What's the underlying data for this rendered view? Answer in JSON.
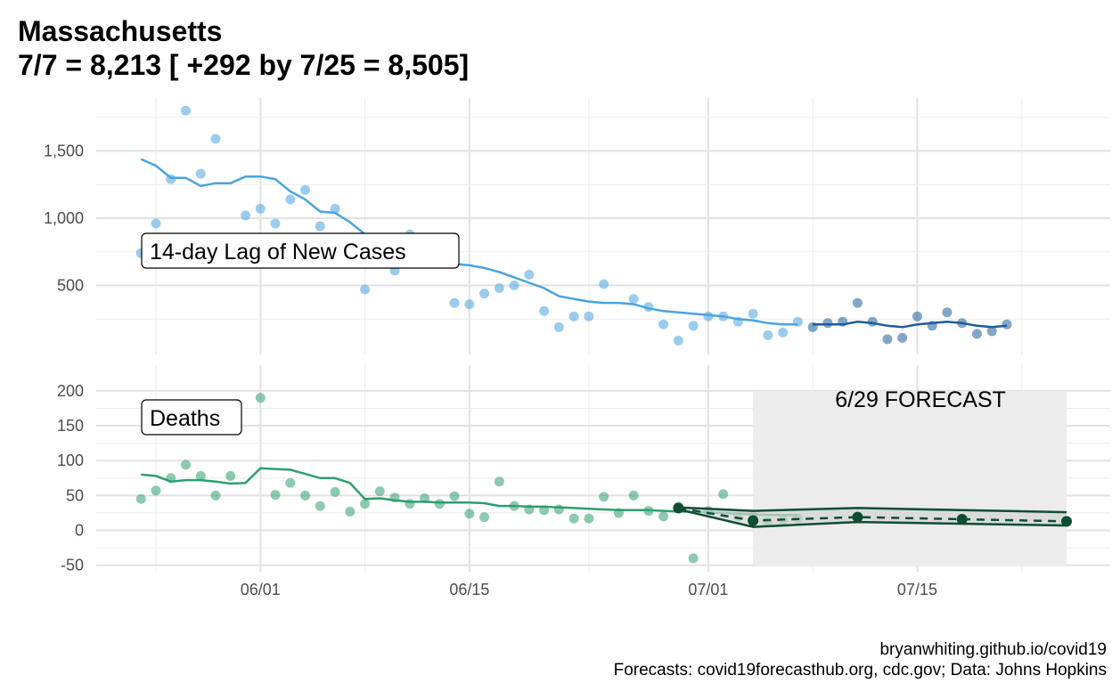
{
  "title": {
    "line1": "Massachusetts",
    "line2": "7/7 = 8,213 [ +292 by 7/25 = 8,505]"
  },
  "caption": {
    "line1": "bryanwhiting.github.io/covid19",
    "line2": "Forecasts: covid19forecasthub.org, cdc.gov; Data: Johns Hopkins"
  },
  "colors": {
    "cases_observed": "#4aa3df",
    "cases_forecast": "#1c5d99",
    "deaths_observed": "#2e9e6e",
    "deaths_forecast": "#0d4d34",
    "forecast_band": "#ececec"
  },
  "chart_data": [
    {
      "type": "scatter",
      "panel": "cases",
      "label": "14-day Lag of New Cases",
      "x_axis": {
        "type": "date",
        "range": [
          "2020-05-20",
          "2020-07-25"
        ],
        "ticks": [
          {
            "date": "2020-06-01",
            "label": "06/01"
          },
          {
            "date": "2020-06-15",
            "label": "06/15"
          },
          {
            "date": "2020-07-01",
            "label": "07/01"
          },
          {
            "date": "2020-07-15",
            "label": "07/15"
          }
        ]
      },
      "ylim": [
        0,
        1800
      ],
      "y_ticks": [
        {
          "value": 500,
          "label": "500"
        },
        {
          "value": 1000,
          "label": "1,000"
        },
        {
          "value": 1500,
          "label": "1,500"
        }
      ],
      "observed": {
        "x": [
          "2020-05-24",
          "2020-05-25",
          "2020-05-26",
          "2020-05-27",
          "2020-05-28",
          "2020-05-29",
          "2020-05-31",
          "2020-06-01",
          "2020-06-02",
          "2020-06-03",
          "2020-06-04",
          "2020-06-05",
          "2020-06-06",
          "2020-06-08",
          "2020-06-10",
          "2020-06-11",
          "2020-06-14",
          "2020-06-15",
          "2020-06-16",
          "2020-06-17",
          "2020-06-18",
          "2020-06-19",
          "2020-06-20",
          "2020-06-21",
          "2020-06-22",
          "2020-06-23",
          "2020-06-24",
          "2020-06-26",
          "2020-06-27",
          "2020-06-28",
          "2020-06-29",
          "2020-06-30",
          "2020-07-01",
          "2020-07-02",
          "2020-07-03",
          "2020-07-04",
          "2020-07-05",
          "2020-07-06",
          "2020-07-07"
        ],
        "y": [
          740,
          960,
          1290,
          1800,
          1330,
          1590,
          1020,
          1070,
          960,
          1140,
          1210,
          940,
          1070,
          470,
          610,
          880,
          370,
          360,
          440,
          480,
          500,
          580,
          310,
          190,
          270,
          270,
          510,
          400,
          340,
          210,
          90,
          200,
          270,
          270,
          230,
          290,
          130,
          150,
          230
        ]
      },
      "observed_smooth": {
        "x": [
          "2020-05-24",
          "2020-05-25",
          "2020-05-26",
          "2020-05-27",
          "2020-05-28",
          "2020-05-29",
          "2020-05-30",
          "2020-05-31",
          "2020-06-01",
          "2020-06-02",
          "2020-06-03",
          "2020-06-04",
          "2020-06-05",
          "2020-06-06",
          "2020-06-07",
          "2020-06-08",
          "2020-06-09",
          "2020-06-10",
          "2020-06-11",
          "2020-06-12",
          "2020-06-13",
          "2020-06-14",
          "2020-06-15",
          "2020-06-16",
          "2020-06-17",
          "2020-06-18",
          "2020-06-19",
          "2020-06-20",
          "2020-06-21",
          "2020-06-22",
          "2020-06-23",
          "2020-06-24",
          "2020-06-25",
          "2020-06-26",
          "2020-06-27",
          "2020-06-28",
          "2020-06-29",
          "2020-06-30",
          "2020-07-01",
          "2020-07-02",
          "2020-07-03",
          "2020-07-04",
          "2020-07-05",
          "2020-07-06",
          "2020-07-07"
        ],
        "y": [
          1440,
          1390,
          1300,
          1300,
          1240,
          1260,
          1260,
          1310,
          1310,
          1290,
          1200,
          1140,
          1050,
          1040,
          970,
          880,
          800,
          760,
          700,
          690,
          670,
          660,
          650,
          630,
          600,
          560,
          520,
          480,
          420,
          400,
          380,
          370,
          370,
          360,
          330,
          310,
          300,
          290,
          280,
          270,
          250,
          240,
          220,
          210,
          210
        ]
      },
      "forecast": {
        "x": [
          "2020-07-08",
          "2020-07-09",
          "2020-07-10",
          "2020-07-11",
          "2020-07-12",
          "2020-07-13",
          "2020-07-14",
          "2020-07-15",
          "2020-07-16",
          "2020-07-17",
          "2020-07-18",
          "2020-07-19",
          "2020-07-20",
          "2020-07-21"
        ],
        "y": [
          190,
          220,
          230,
          370,
          230,
          100,
          110,
          270,
          200,
          300,
          220,
          140,
          160,
          210
        ]
      },
      "forecast_smooth": {
        "x": [
          "2020-07-08",
          "2020-07-09",
          "2020-07-10",
          "2020-07-11",
          "2020-07-12",
          "2020-07-13",
          "2020-07-14",
          "2020-07-15",
          "2020-07-16",
          "2020-07-17",
          "2020-07-18",
          "2020-07-19",
          "2020-07-20",
          "2020-07-21"
        ],
        "y": [
          210,
          210,
          210,
          230,
          220,
          200,
          190,
          210,
          220,
          230,
          220,
          200,
          190,
          200
        ]
      }
    },
    {
      "type": "scatter",
      "panel": "deaths",
      "label": "Deaths",
      "forecast_label": "6/29 FORECAST",
      "forecast_band": [
        "2020-07-04",
        "2020-07-25"
      ],
      "ylim": [
        -50,
        200
      ],
      "y_ticks": [
        {
          "value": -50,
          "label": "-50"
        },
        {
          "value": 0,
          "label": "0"
        },
        {
          "value": 50,
          "label": "50"
        },
        {
          "value": 100,
          "label": "100"
        },
        {
          "value": 150,
          "label": "150"
        },
        {
          "value": 200,
          "label": "200"
        }
      ],
      "observed": {
        "x": [
          "2020-05-24",
          "2020-05-25",
          "2020-05-26",
          "2020-05-27",
          "2020-05-28",
          "2020-05-29",
          "2020-05-30",
          "2020-06-01",
          "2020-06-02",
          "2020-06-03",
          "2020-06-04",
          "2020-06-05",
          "2020-06-06",
          "2020-06-07",
          "2020-06-08",
          "2020-06-09",
          "2020-06-10",
          "2020-06-11",
          "2020-06-12",
          "2020-06-13",
          "2020-06-14",
          "2020-06-15",
          "2020-06-16",
          "2020-06-17",
          "2020-06-18",
          "2020-06-19",
          "2020-06-20",
          "2020-06-21",
          "2020-06-22",
          "2020-06-23",
          "2020-06-24",
          "2020-06-25",
          "2020-06-26",
          "2020-06-27",
          "2020-06-28",
          "2020-06-29",
          "2020-06-30",
          "2020-07-01",
          "2020-07-02",
          "2020-07-03",
          "2020-07-04",
          "2020-07-05",
          "2020-07-06",
          "2020-07-07"
        ],
        "y": [
          45,
          57,
          75,
          94,
          78,
          50,
          78,
          190,
          51,
          68,
          50,
          35,
          55,
          27,
          38,
          56,
          47,
          38,
          46,
          38,
          49,
          24,
          19,
          70,
          35,
          30,
          29,
          30,
          17,
          17,
          48,
          25,
          50,
          28,
          20,
          34,
          -40,
          28,
          52,
          20,
          22,
          12,
          15,
          17
        ]
      },
      "observed_smooth": {
        "x": [
          "2020-05-24",
          "2020-05-25",
          "2020-05-26",
          "2020-05-27",
          "2020-05-28",
          "2020-05-29",
          "2020-05-30",
          "2020-05-31",
          "2020-06-01",
          "2020-06-02",
          "2020-06-03",
          "2020-06-04",
          "2020-06-05",
          "2020-06-06",
          "2020-06-07",
          "2020-06-08",
          "2020-06-09",
          "2020-06-10",
          "2020-06-11",
          "2020-06-12",
          "2020-06-13",
          "2020-06-14",
          "2020-06-15",
          "2020-06-16",
          "2020-06-17",
          "2020-06-18",
          "2020-06-19",
          "2020-06-20",
          "2020-06-21",
          "2020-06-22",
          "2020-06-23",
          "2020-06-24",
          "2020-06-25",
          "2020-06-26",
          "2020-06-27",
          "2020-06-28",
          "2020-06-29",
          "2020-06-30",
          "2020-07-01",
          "2020-07-02",
          "2020-07-03",
          "2020-07-04",
          "2020-07-05",
          "2020-07-06",
          "2020-07-07"
        ],
        "y": [
          80,
          78,
          70,
          72,
          72,
          70,
          67,
          68,
          89,
          88,
          87,
          81,
          75,
          75,
          68,
          45,
          46,
          43,
          41,
          41,
          40,
          40,
          40,
          39,
          35,
          35,
          34,
          34,
          33,
          32,
          31,
          30,
          29,
          29,
          29,
          28,
          27,
          27,
          26,
          25,
          24,
          23,
          22,
          22,
          22
        ]
      },
      "forecast_upper": {
        "x": [
          "2020-06-29",
          "2020-07-04",
          "2020-07-11",
          "2020-07-25"
        ],
        "y": [
          33,
          28,
          32,
          26
        ]
      },
      "forecast_lower": {
        "x": [
          "2020-06-29",
          "2020-07-04",
          "2020-07-11",
          "2020-07-25"
        ],
        "y": [
          30,
          5,
          12,
          7
        ]
      },
      "forecast_point": {
        "x": [
          "2020-06-29",
          "2020-07-04",
          "2020-07-11",
          "2020-07-18",
          "2020-07-25"
        ],
        "y": [
          32,
          14,
          19,
          16,
          13
        ]
      }
    }
  ]
}
